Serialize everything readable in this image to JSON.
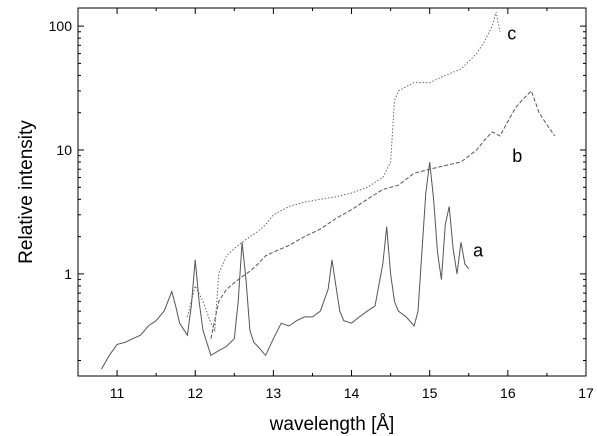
{
  "chart_data": {
    "type": "line",
    "title": "",
    "xlabel": "wavelength [Å]",
    "ylabel": "Relative intensity",
    "xlim": [
      10.5,
      17.0
    ],
    "ylim": [
      0.15,
      140
    ],
    "yscale": "log",
    "grid": false,
    "legend": "none",
    "x_ticks": [
      "11",
      "12",
      "13",
      "14",
      "15",
      "16",
      "17"
    ],
    "y_ticks": [
      "1",
      "10",
      "100"
    ],
    "series": [
      {
        "name": "a",
        "color": "#555555",
        "dash": "solid",
        "x": [
          10.8,
          10.9,
          11.0,
          11.1,
          11.2,
          11.3,
          11.4,
          11.5,
          11.6,
          11.65,
          11.7,
          11.75,
          11.8,
          11.9,
          11.95,
          12.0,
          12.05,
          12.1,
          12.2,
          12.3,
          12.4,
          12.5,
          12.55,
          12.6,
          12.65,
          12.7,
          12.75,
          12.8,
          12.9,
          13.0,
          13.1,
          13.2,
          13.3,
          13.4,
          13.5,
          13.6,
          13.7,
          13.75,
          13.8,
          13.85,
          13.9,
          14.0,
          14.1,
          14.2,
          14.3,
          14.4,
          14.45,
          14.5,
          14.55,
          14.6,
          14.7,
          14.8,
          14.85,
          14.9,
          14.95,
          15.0,
          15.05,
          15.1,
          15.15,
          15.2,
          15.25,
          15.3,
          15.35,
          15.4,
          15.45,
          15.5
        ],
        "y": [
          0.17,
          0.22,
          0.27,
          0.28,
          0.3,
          0.32,
          0.38,
          0.42,
          0.5,
          0.6,
          0.72,
          0.55,
          0.4,
          0.32,
          0.55,
          1.3,
          0.6,
          0.35,
          0.22,
          0.24,
          0.26,
          0.3,
          0.6,
          1.8,
          0.9,
          0.35,
          0.28,
          0.26,
          0.22,
          0.3,
          0.4,
          0.38,
          0.42,
          0.45,
          0.45,
          0.5,
          0.75,
          1.3,
          0.8,
          0.5,
          0.42,
          0.4,
          0.45,
          0.5,
          0.55,
          1.2,
          2.4,
          1.0,
          0.6,
          0.5,
          0.45,
          0.38,
          0.5,
          1.5,
          4.5,
          8.0,
          4.0,
          1.5,
          0.9,
          2.5,
          3.5,
          1.6,
          1.0,
          1.8,
          1.2,
          1.1
        ]
      },
      {
        "name": "b",
        "color": "#555555",
        "dash": "dashed",
        "x": [
          12.2,
          12.3,
          12.4,
          12.5,
          12.6,
          12.7,
          12.8,
          12.9,
          13.0,
          13.2,
          13.4,
          13.6,
          13.8,
          14.0,
          14.2,
          14.4,
          14.6,
          14.8,
          15.0,
          15.2,
          15.4,
          15.6,
          15.7,
          15.8,
          15.9,
          16.0,
          16.1,
          16.2,
          16.3,
          16.4,
          16.5,
          16.6
        ],
        "y": [
          0.3,
          0.6,
          0.75,
          0.85,
          0.95,
          1.05,
          1.2,
          1.4,
          1.5,
          1.7,
          2.0,
          2.3,
          2.8,
          3.3,
          4.0,
          4.8,
          5.2,
          6.5,
          7.0,
          7.5,
          8.0,
          10.0,
          12.0,
          14.0,
          13.0,
          17.0,
          22.0,
          26.0,
          30.0,
          20.0,
          16.0,
          13.0
        ]
      },
      {
        "name": "c",
        "color": "#666666",
        "dash": "dotted",
        "x": [
          11.9,
          12.0,
          12.1,
          12.2,
          12.25,
          12.3,
          12.4,
          12.5,
          12.6,
          12.7,
          12.8,
          12.9,
          13.0,
          13.2,
          13.4,
          13.6,
          13.8,
          14.0,
          14.2,
          14.4,
          14.5,
          14.55,
          14.6,
          14.8,
          15.0,
          15.2,
          15.4,
          15.6,
          15.7,
          15.8,
          15.85,
          15.9
        ],
        "y": [
          0.45,
          0.8,
          0.6,
          0.4,
          0.35,
          1.0,
          1.4,
          1.6,
          1.8,
          2.0,
          2.2,
          2.5,
          3.0,
          3.5,
          3.8,
          4.0,
          4.2,
          4.5,
          5.0,
          6.0,
          8.0,
          25.0,
          30.0,
          35.0,
          35.0,
          40.0,
          45.0,
          60.0,
          75.0,
          100.0,
          130.0,
          90.0
        ]
      }
    ],
    "series_label_positions": [
      {
        "text": "a",
        "x": 15.62,
        "y": 1.38
      },
      {
        "text": "b",
        "x": 16.12,
        "y": 8.0
      },
      {
        "text": "c",
        "x": 16.05,
        "y": 78.0
      }
    ]
  }
}
